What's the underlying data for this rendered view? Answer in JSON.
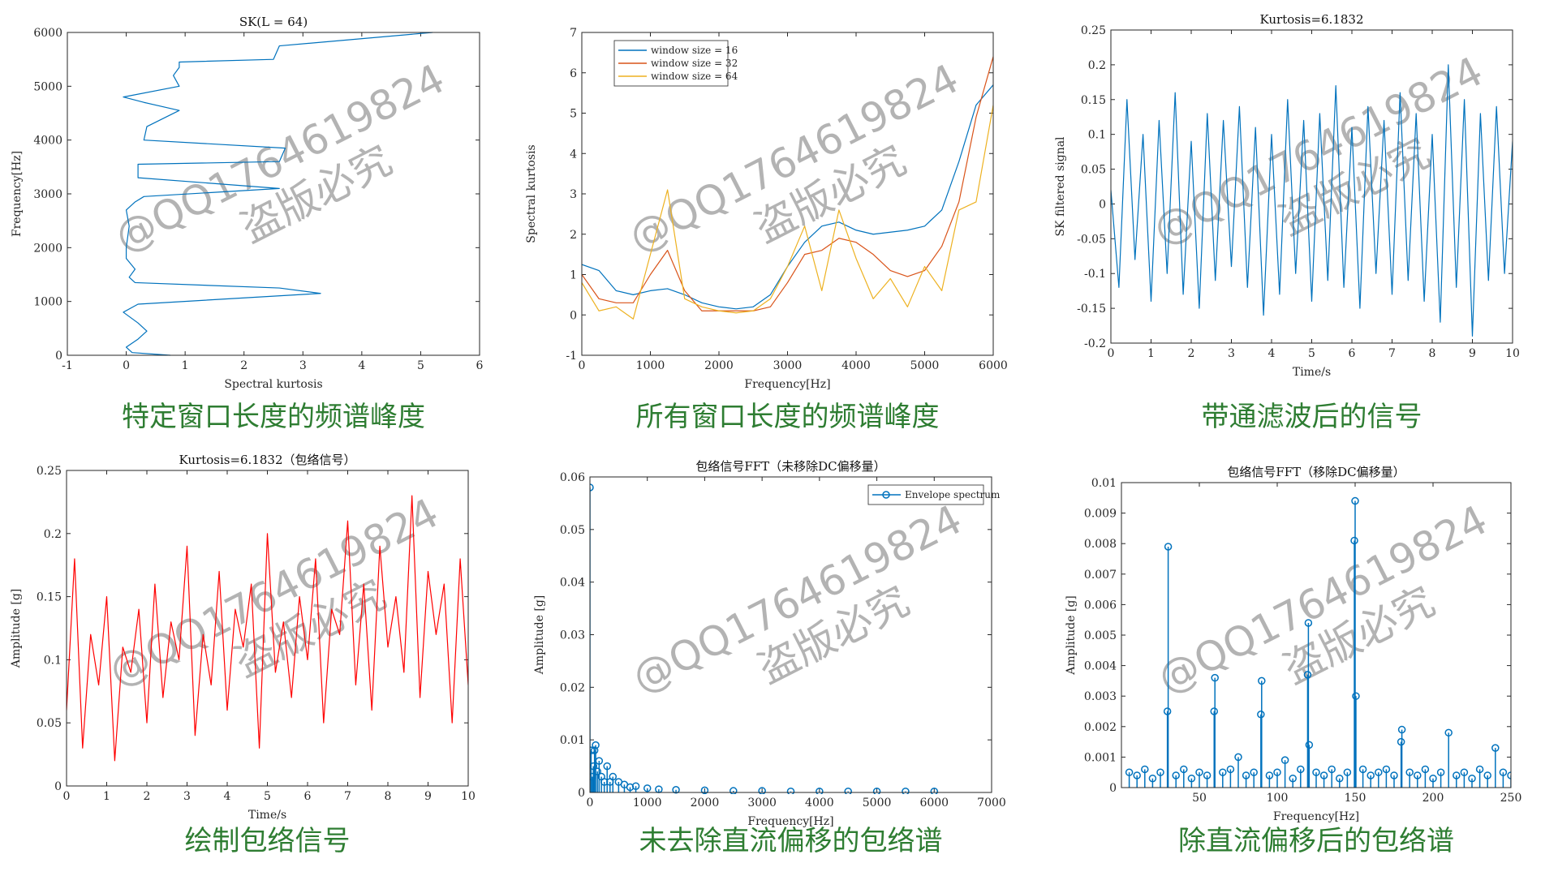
{
  "watermark": [
    "@QQ1764619824",
    "盗版必究"
  ],
  "chart_data": [
    {
      "type": "line",
      "title": "SK(L = 64)",
      "caption": "特定窗口长度的频谱峰度",
      "xlabel": "Spectral kurtosis",
      "ylabel": "Frequency[Hz]",
      "xlim": [
        -1,
        6
      ],
      "xticks": [
        -1,
        0,
        1,
        2,
        3,
        4,
        5,
        6
      ],
      "ylim": [
        0,
        6000
      ],
      "yticks": [
        0,
        1000,
        2000,
        3000,
        4000,
        5000,
        6000
      ],
      "series": [
        {
          "color": "#0072bd",
          "x": [
            0.75,
            0.1,
            0,
            0.2,
            0.35,
            0.2,
            -0.05,
            0.2,
            3.3,
            2.6,
            0.15,
            0.05,
            0.15,
            0,
            0,
            0.05,
            0,
            0.15,
            0.3,
            2.6,
            0.2,
            0.2,
            2.6,
            2.7,
            0.3,
            0.35,
            0.9,
            0.3,
            -0.05,
            0.9,
            0.8,
            0.9,
            0.9,
            2.5,
            2.6,
            5.2
          ],
          "values": [
            0,
            50,
            150,
            300,
            450,
            600,
            800,
            950,
            1150,
            1250,
            1350,
            1450,
            1600,
            1800,
            2000,
            2400,
            2700,
            2850,
            2950,
            3100,
            3300,
            3550,
            3600,
            3850,
            4000,
            4250,
            4550,
            4700,
            4800,
            5000,
            5200,
            5350,
            5450,
            5500,
            5750,
            6000
          ]
        }
      ]
    },
    {
      "type": "line",
      "title": "",
      "caption": "所有窗口长度的频谱峰度",
      "xlabel": "Frequency[Hz]",
      "ylabel": "Spectral kurtosis",
      "legend": "upper left",
      "xlim": [
        0,
        6000
      ],
      "xticks": [
        0,
        1000,
        2000,
        3000,
        4000,
        5000,
        6000
      ],
      "ylim": [
        -1,
        7
      ],
      "yticks": [
        -1,
        0,
        1,
        2,
        3,
        4,
        5,
        6,
        7
      ],
      "x": [
        0,
        250,
        500,
        750,
        1000,
        1250,
        1500,
        1750,
        2000,
        2250,
        2500,
        2750,
        3000,
        3250,
        3500,
        3750,
        4000,
        4250,
        4500,
        4750,
        5000,
        5250,
        5500,
        5750,
        6000
      ],
      "series": [
        {
          "name": "window size = 16",
          "color": "#0072bd",
          "values": [
            1.25,
            1.1,
            0.6,
            0.5,
            0.6,
            0.65,
            0.5,
            0.3,
            0.2,
            0.15,
            0.2,
            0.5,
            1.2,
            1.8,
            2.2,
            2.3,
            2.1,
            2.0,
            2.05,
            2.1,
            2.2,
            2.6,
            3.8,
            5.2,
            5.7
          ]
        },
        {
          "name": "window size = 32",
          "color": "#d95319",
          "values": [
            1.0,
            0.4,
            0.3,
            0.3,
            1.0,
            1.6,
            0.6,
            0.1,
            0.1,
            0.1,
            0.1,
            0.2,
            0.8,
            1.5,
            1.6,
            1.9,
            1.8,
            1.5,
            1.1,
            0.95,
            1.1,
            1.7,
            2.8,
            4.9,
            6.4
          ]
        },
        {
          "name": "window size = 64",
          "color": "#edb120",
          "values": [
            0.8,
            0.1,
            0.2,
            -0.1,
            1.5,
            3.1,
            0.4,
            0.2,
            0.1,
            0.05,
            0.1,
            0.4,
            1.2,
            2.2,
            0.6,
            2.6,
            1.4,
            0.4,
            0.9,
            0.2,
            1.2,
            0.6,
            2.6,
            2.8,
            5.2
          ]
        }
      ]
    },
    {
      "type": "line",
      "title": "Kurtosis=6.1832",
      "caption": "带通滤波后的信号",
      "xlabel": "Time/s",
      "ylabel": "SK filtered signal",
      "xlim": [
        0,
        10
      ],
      "xticks": [
        0,
        1,
        2,
        3,
        4,
        5,
        6,
        7,
        8,
        9,
        10
      ],
      "ylim": [
        -0.2,
        0.25
      ],
      "yticks": [
        -0.2,
        -0.15,
        -0.1,
        -0.05,
        0,
        0.05,
        0.1,
        0.15,
        0.2,
        0.25
      ],
      "x": [
        0,
        0.2,
        0.4,
        0.6,
        0.8,
        1,
        1.2,
        1.4,
        1.6,
        1.8,
        2,
        2.2,
        2.4,
        2.6,
        2.8,
        3,
        3.2,
        3.4,
        3.6,
        3.8,
        4,
        4.2,
        4.4,
        4.6,
        4.8,
        5,
        5.2,
        5.4,
        5.6,
        5.8,
        6,
        6.2,
        6.4,
        6.6,
        6.8,
        7,
        7.2,
        7.4,
        7.6,
        7.8,
        8,
        8.2,
        8.4,
        8.6,
        8.8,
        9,
        9.2,
        9.4,
        9.6,
        9.8,
        10
      ],
      "series": [
        {
          "color": "#0072bd",
          "values": [
            0.02,
            -0.12,
            0.15,
            -0.08,
            0.1,
            -0.14,
            0.12,
            -0.1,
            0.16,
            -0.13,
            0.09,
            -0.15,
            0.13,
            -0.11,
            0.12,
            -0.09,
            0.14,
            -0.12,
            0.11,
            -0.16,
            0.1,
            -0.13,
            0.15,
            -0.1,
            0.12,
            -0.14,
            0.13,
            -0.11,
            0.17,
            -0.12,
            0.11,
            -0.15,
            0.14,
            -0.1,
            0.12,
            -0.13,
            0.16,
            -0.11,
            0.13,
            -0.14,
            0.1,
            -0.17,
            0.2,
            -0.12,
            0.15,
            -0.19,
            0.13,
            -0.11,
            0.14,
            -0.1,
            0.09
          ]
        }
      ]
    },
    {
      "type": "line",
      "title": "Kurtosis=6.1832（包络信号）",
      "caption": "绘制包络信号",
      "xlabel": "Time/s",
      "ylabel": "Amplitude [g]",
      "xlim": [
        0,
        10
      ],
      "xticks": [
        0,
        1,
        2,
        3,
        4,
        5,
        6,
        7,
        8,
        9,
        10
      ],
      "ylim": [
        0,
        0.25
      ],
      "yticks": [
        0,
        0.05,
        0.1,
        0.15,
        0.2,
        0.25
      ],
      "x": [
        0,
        0.2,
        0.4,
        0.6,
        0.8,
        1,
        1.2,
        1.4,
        1.6,
        1.8,
        2,
        2.2,
        2.4,
        2.6,
        2.8,
        3,
        3.2,
        3.4,
        3.6,
        3.8,
        4,
        4.2,
        4.4,
        4.6,
        4.8,
        5,
        5.2,
        5.4,
        5.6,
        5.8,
        6,
        6.2,
        6.4,
        6.6,
        6.8,
        7,
        7.2,
        7.4,
        7.6,
        7.8,
        8,
        8.2,
        8.4,
        8.6,
        8.8,
        9,
        9.2,
        9.4,
        9.6,
        9.8,
        10
      ],
      "series": [
        {
          "color": "#ff0000",
          "values": [
            0.06,
            0.18,
            0.03,
            0.12,
            0.08,
            0.15,
            0.02,
            0.11,
            0.09,
            0.14,
            0.05,
            0.16,
            0.07,
            0.13,
            0.1,
            0.19,
            0.04,
            0.12,
            0.08,
            0.17,
            0.06,
            0.14,
            0.11,
            0.16,
            0.03,
            0.2,
            0.09,
            0.13,
            0.07,
            0.15,
            0.1,
            0.18,
            0.05,
            0.14,
            0.12,
            0.21,
            0.08,
            0.16,
            0.06,
            0.19,
            0.11,
            0.15,
            0.09,
            0.23,
            0.07,
            0.17,
            0.12,
            0.16,
            0.05,
            0.18,
            0.08
          ]
        }
      ]
    },
    {
      "type": "stem",
      "title": "包络信号FFT（未移除DC偏移量）",
      "caption": "未去除直流偏移的包络谱",
      "xlabel": "Frequency[Hz]",
      "ylabel": "Amplitude [g]",
      "legend": "upper right",
      "xlim": [
        0,
        7000
      ],
      "xticks": [
        0,
        1000,
        2000,
        3000,
        4000,
        5000,
        6000,
        7000
      ],
      "ylim": [
        0,
        0.06
      ],
      "yticks": [
        0,
        0.01,
        0.02,
        0.03,
        0.04,
        0.05,
        0.06
      ],
      "series": [
        {
          "name": "Envelope spectrum",
          "color": "#0072bd",
          "x": [
            0,
            20,
            40,
            60,
            80,
            100,
            130,
            160,
            200,
            250,
            300,
            350,
            400,
            500,
            600,
            700,
            800,
            1000,
            1200,
            1500,
            2000,
            2500,
            3000,
            3500,
            4000,
            4500,
            5000,
            5500,
            6000
          ],
          "values": [
            0.058,
            0.008,
            0.003,
            0.005,
            0.008,
            0.009,
            0.004,
            0.006,
            0.003,
            0.002,
            0.005,
            0.002,
            0.003,
            0.002,
            0.0015,
            0.001,
            0.0012,
            0.0008,
            0.0006,
            0.0005,
            0.0004,
            0.0003,
            0.0003,
            0.0002,
            0.0002,
            0.0002,
            0.0002,
            0.0002,
            0.0002
          ]
        }
      ]
    },
    {
      "type": "stem",
      "title": "包络信号FFT（移除DC偏移量）",
      "caption": "除直流偏移后的包络谱",
      "xlabel": "Frequency[Hz]",
      "ylabel": "Amplitude [g]",
      "xlim": [
        0,
        250
      ],
      "xticks": [
        50,
        100,
        150,
        200,
        250
      ],
      "ylim": [
        0,
        0.01
      ],
      "yticks": [
        0,
        0.001,
        0.002,
        0.003,
        0.004,
        0.005,
        0.006,
        0.007,
        0.008,
        0.009,
        0.01
      ],
      "series": [
        {
          "color": "#0072bd",
          "x": [
            5,
            10,
            15,
            20,
            25,
            29.5,
            30,
            35,
            40,
            45,
            50,
            55,
            59.5,
            60,
            65,
            70,
            75,
            80,
            85,
            89.5,
            90,
            95,
            100,
            105,
            110,
            115,
            119.5,
            120,
            120.5,
            125,
            130,
            135,
            140,
            145,
            149.5,
            150,
            150.5,
            155,
            160,
            165,
            170,
            175,
            179.5,
            180,
            185,
            190,
            195,
            200,
            205,
            210,
            215,
            220,
            225,
            230,
            235,
            240,
            245,
            250
          ],
          "values": [
            0.0005,
            0.0004,
            0.0006,
            0.0003,
            0.0005,
            0.0025,
            0.0079,
            0.0004,
            0.0006,
            0.0003,
            0.0005,
            0.0004,
            0.0025,
            0.0036,
            0.0005,
            0.0006,
            0.001,
            0.0004,
            0.0005,
            0.0024,
            0.0035,
            0.0004,
            0.0005,
            0.0009,
            0.0003,
            0.0006,
            0.0037,
            0.0054,
            0.0014,
            0.0005,
            0.0004,
            0.0006,
            0.0003,
            0.0005,
            0.0081,
            0.0094,
            0.003,
            0.0006,
            0.0004,
            0.0005,
            0.0006,
            0.0004,
            0.0015,
            0.0019,
            0.0005,
            0.0004,
            0.0006,
            0.0003,
            0.0005,
            0.0018,
            0.0004,
            0.0005,
            0.0003,
            0.0006,
            0.0004,
            0.0013,
            0.0005,
            0.0004
          ]
        }
      ]
    }
  ]
}
